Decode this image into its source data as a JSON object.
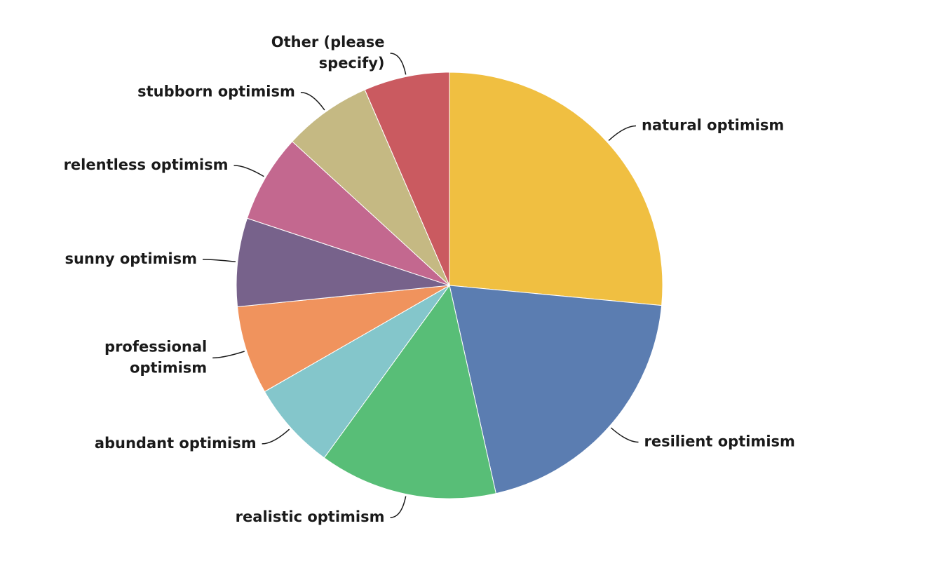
{
  "chart_data": {
    "type": "pie",
    "title": "",
    "start_angle_deg": 0,
    "direction": "clockwise",
    "slices": [
      {
        "label": [
          "natural optimism"
        ],
        "value": 26.5,
        "color": "#F0BF41"
      },
      {
        "label": [
          "resilient optimism"
        ],
        "value": 20.0,
        "color": "#5B7DB1"
      },
      {
        "label": [
          "realistic optimism"
        ],
        "value": 13.5,
        "color": "#58BE77"
      },
      {
        "label": [
          "abundant optimism"
        ],
        "value": 6.7,
        "color": "#84C6CB"
      },
      {
        "label": [
          "professional",
          "optimism"
        ],
        "value": 6.7,
        "color": "#F0935D"
      },
      {
        "label": [
          "sunny optimism"
        ],
        "value": 6.7,
        "color": "#77628B"
      },
      {
        "label": [
          "relentless optimism"
        ],
        "value": 6.7,
        "color": "#C3688F"
      },
      {
        "label": [
          "stubborn optimism"
        ],
        "value": 6.7,
        "color": "#C5B983"
      },
      {
        "label": [
          "Other (please",
          "specify)"
        ],
        "value": 6.5,
        "color": "#CA5A60"
      }
    ]
  }
}
